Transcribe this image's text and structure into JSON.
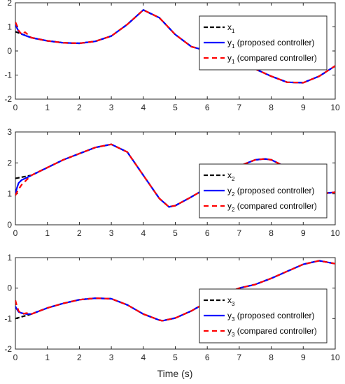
{
  "chart_data": [
    {
      "type": "line",
      "title": "",
      "xlabel": "",
      "ylabel": "",
      "xlim": [
        0,
        10
      ],
      "ylim": [
        -2,
        2
      ],
      "x_ticks": [
        "0",
        "1",
        "2",
        "3",
        "4",
        "5",
        "6",
        "7",
        "8",
        "9",
        "10"
      ],
      "y_ticks": [
        "-2",
        "-1",
        "0",
        "1",
        "2"
      ],
      "grid": false,
      "legend_position": "top-right",
      "legend": [
        {
          "base": "x",
          "sub": "1",
          "suffix": ""
        },
        {
          "base": "y",
          "sub": "1",
          "suffix": " (proposed controller)"
        },
        {
          "base": "y",
          "sub": "1",
          "suffix": " (compared controller)"
        }
      ],
      "colors": {
        "reference": "#000000",
        "proposed": "#0000ff",
        "compared": "#ff0000"
      },
      "series": [
        {
          "x": [
            0,
            0.5,
            1,
            1.5,
            2,
            2.5,
            3,
            3.5,
            4,
            4.5,
            5,
            5.5,
            6,
            6.5,
            7,
            7.5,
            8,
            8.5,
            9,
            9.5,
            10
          ],
          "values": [
            0.8,
            0.55,
            0.42,
            0.34,
            0.32,
            0.4,
            0.62,
            1.1,
            1.7,
            1.38,
            0.68,
            0.18,
            0.0,
            -0.2,
            -0.45,
            -0.75,
            -1.05,
            -1.3,
            -1.32,
            -1.05,
            -0.62
          ]
        },
        {
          "x": [
            0,
            0.05,
            0.1,
            0.2,
            0.35,
            0.5,
            1,
            1.5,
            2,
            2.5,
            3,
            3.5,
            4,
            4.5,
            5,
            5.5,
            6,
            6.5,
            7,
            7.5,
            8,
            8.5,
            9,
            9.5,
            10
          ],
          "values": [
            1.1,
            0.95,
            0.82,
            0.7,
            0.62,
            0.55,
            0.42,
            0.34,
            0.32,
            0.4,
            0.62,
            1.1,
            1.7,
            1.38,
            0.68,
            0.18,
            0.0,
            -0.2,
            -0.45,
            -0.75,
            -1.05,
            -1.3,
            -1.32,
            -1.05,
            -0.62
          ]
        },
        {
          "x": [
            0,
            0.05,
            0.1,
            0.2,
            0.3,
            0.5,
            1,
            1.5,
            2,
            2.5,
            3,
            3.5,
            4,
            4.5,
            5,
            5.5,
            6,
            6.5,
            7,
            7.5,
            8,
            8.5,
            9,
            9.5,
            10
          ],
          "values": [
            1.2,
            1.05,
            0.85,
            0.68,
            0.78,
            0.55,
            0.42,
            0.34,
            0.32,
            0.4,
            0.62,
            1.1,
            1.7,
            1.38,
            0.68,
            0.18,
            0.0,
            -0.2,
            -0.45,
            -0.75,
            -1.05,
            -1.3,
            -1.32,
            -1.05,
            -0.62
          ]
        }
      ]
    },
    {
      "type": "line",
      "title": "",
      "xlabel": "",
      "ylabel": "",
      "xlim": [
        0,
        10
      ],
      "ylim": [
        0,
        3
      ],
      "x_ticks": [
        "0",
        "1",
        "2",
        "3",
        "4",
        "5",
        "6",
        "7",
        "8",
        "9",
        "10"
      ],
      "y_ticks": [
        "0",
        "1",
        "2",
        "3"
      ],
      "grid": false,
      "legend_position": "right",
      "legend": [
        {
          "base": "x",
          "sub": "2",
          "suffix": ""
        },
        {
          "base": "y",
          "sub": "2",
          "suffix": " (proposed controller)"
        },
        {
          "base": "y",
          "sub": "2",
          "suffix": " (compared controller)"
        }
      ],
      "colors": {
        "reference": "#000000",
        "proposed": "#0000ff",
        "compared": "#ff0000"
      },
      "series": [
        {
          "x": [
            0,
            0.5,
            1,
            1.5,
            2,
            2.5,
            3,
            3.5,
            4,
            4.5,
            4.8,
            5,
            5.5,
            6,
            6.5,
            7,
            7.5,
            7.8,
            8,
            8.5,
            9,
            9.5,
            10
          ],
          "values": [
            1.5,
            1.6,
            1.85,
            2.1,
            2.3,
            2.5,
            2.6,
            2.35,
            1.6,
            0.85,
            0.58,
            0.62,
            0.9,
            1.2,
            1.55,
            1.9,
            2.1,
            2.13,
            2.1,
            1.85,
            1.35,
            1.0,
            1.05
          ]
        },
        {
          "x": [
            0,
            0.05,
            0.1,
            0.2,
            0.35,
            0.5,
            1,
            1.5,
            2,
            2.5,
            3,
            3.5,
            4,
            4.5,
            4.8,
            5,
            5.5,
            6,
            6.5,
            7,
            7.5,
            7.8,
            8,
            8.5,
            9,
            9.5,
            10
          ],
          "values": [
            1.0,
            1.2,
            1.35,
            1.45,
            1.52,
            1.6,
            1.85,
            2.1,
            2.3,
            2.5,
            2.6,
            2.35,
            1.6,
            0.85,
            0.58,
            0.62,
            0.9,
            1.2,
            1.55,
            1.9,
            2.1,
            2.13,
            2.1,
            1.85,
            1.35,
            1.0,
            1.05
          ]
        },
        {
          "x": [
            0,
            0.05,
            0.1,
            0.2,
            0.35,
            0.5,
            1,
            1.5,
            2,
            2.5,
            3,
            3.5,
            4,
            4.5,
            4.8,
            5,
            5.5,
            6,
            6.5,
            7,
            7.5,
            7.8,
            8,
            8.5,
            9,
            9.5,
            10
          ],
          "values": [
            0.95,
            1.05,
            1.15,
            1.3,
            1.45,
            1.6,
            1.85,
            2.1,
            2.3,
            2.5,
            2.6,
            2.35,
            1.6,
            0.85,
            0.58,
            0.62,
            0.9,
            1.2,
            1.55,
            1.9,
            2.1,
            2.13,
            2.1,
            1.85,
            1.35,
            1.0,
            1.05
          ]
        }
      ]
    },
    {
      "type": "line",
      "title": "",
      "xlabel": "Time (s)",
      "ylabel": "",
      "xlim": [
        0,
        10
      ],
      "ylim": [
        -2,
        1
      ],
      "x_ticks": [
        "0",
        "1",
        "2",
        "3",
        "4",
        "5",
        "6",
        "7",
        "8",
        "9",
        "10"
      ],
      "y_ticks": [
        "-2",
        "-1",
        "0",
        "1"
      ],
      "grid": false,
      "legend_position": "bottom-right",
      "legend": [
        {
          "base": "x",
          "sub": "3",
          "suffix": ""
        },
        {
          "base": "y",
          "sub": "3",
          "suffix": " (proposed controller)"
        },
        {
          "base": "y",
          "sub": "3",
          "suffix": " (compared controller)"
        }
      ],
      "colors": {
        "reference": "#000000",
        "proposed": "#0000ff",
        "compared": "#ff0000"
      },
      "series": [
        {
          "x": [
            0,
            0.5,
            1,
            1.5,
            2,
            2.5,
            3,
            3.5,
            4,
            4.5,
            4.6,
            5,
            5.5,
            6,
            6.5,
            7,
            7.5,
            8,
            8.5,
            9,
            9.5,
            10
          ],
          "values": [
            -1.0,
            -0.85,
            -0.65,
            -0.5,
            -0.38,
            -0.33,
            -0.35,
            -0.55,
            -0.85,
            -1.05,
            -1.07,
            -0.98,
            -0.75,
            -0.45,
            -0.2,
            0.0,
            0.12,
            0.32,
            0.55,
            0.78,
            0.9,
            0.8
          ]
        },
        {
          "x": [
            0,
            0.05,
            0.1,
            0.2,
            0.35,
            0.5,
            1,
            1.5,
            2,
            2.5,
            3,
            3.5,
            4,
            4.5,
            4.6,
            5,
            5.5,
            6,
            6.5,
            7,
            7.5,
            8,
            8.5,
            9,
            9.5,
            10
          ],
          "values": [
            -0.6,
            -0.7,
            -0.78,
            -0.82,
            -0.85,
            -0.85,
            -0.65,
            -0.5,
            -0.38,
            -0.33,
            -0.35,
            -0.55,
            -0.85,
            -1.05,
            -1.07,
            -0.98,
            -0.75,
            -0.45,
            -0.2,
            0.0,
            0.12,
            0.32,
            0.55,
            0.78,
            0.9,
            0.8
          ]
        },
        {
          "x": [
            0,
            0.05,
            0.1,
            0.2,
            0.35,
            0.5,
            1,
            1.5,
            2,
            2.5,
            3,
            3.5,
            4,
            4.5,
            4.6,
            5,
            5.5,
            6,
            6.5,
            7,
            7.5,
            8,
            8.5,
            9,
            9.5,
            10
          ],
          "values": [
            -0.4,
            -0.6,
            -0.75,
            -0.85,
            -0.82,
            -0.85,
            -0.65,
            -0.5,
            -0.38,
            -0.33,
            -0.35,
            -0.55,
            -0.85,
            -1.05,
            -1.07,
            -0.98,
            -0.75,
            -0.45,
            -0.2,
            0.0,
            0.12,
            0.32,
            0.55,
            0.78,
            0.9,
            0.8
          ]
        }
      ]
    }
  ]
}
